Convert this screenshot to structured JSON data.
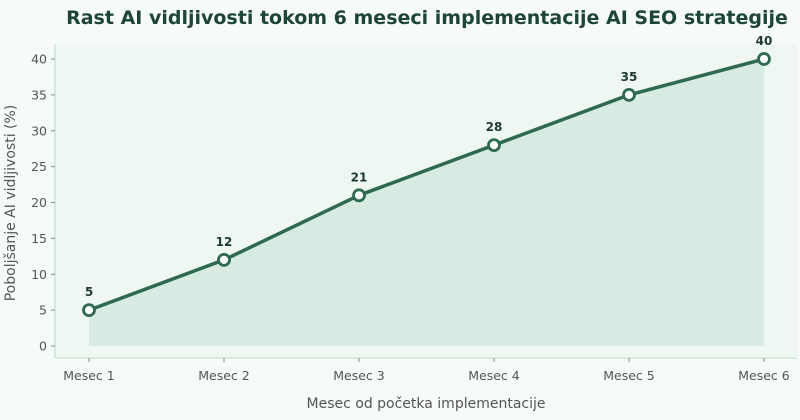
{
  "chart_data": {
    "type": "area",
    "title": "Rast AI vidljivosti tokom 6 meseci implementacije AI SEO strategije",
    "xlabel": "Mesec od početka implementacije",
    "ylabel": "Poboljšanje AI vidljivosti (%)",
    "categories": [
      "Mesec 1",
      "Mesec 2",
      "Mesec 3",
      "Mesec 4",
      "Mesec 5",
      "Mesec 6"
    ],
    "values": [
      5,
      12,
      21,
      28,
      35,
      40
    ],
    "value_labels": [
      "5",
      "12",
      "21",
      "28",
      "35",
      "40"
    ],
    "yticks": [
      0,
      5,
      10,
      15,
      20,
      25,
      30,
      35,
      40
    ],
    "ytick_labels": [
      "0",
      "5",
      "10",
      "15",
      "20",
      "25",
      "30",
      "35",
      "40"
    ],
    "ylim": [
      0,
      42
    ],
    "grid": false,
    "legend": "none",
    "colors": {
      "line": "#2d6a4f",
      "fill": "#d8ebe2",
      "plot_bg": "#eef7f2",
      "page_bg": "#f7fafa",
      "axis": "#b9dcc7",
      "marker_fill": "#ffffff",
      "title": "#1d4536"
    }
  }
}
